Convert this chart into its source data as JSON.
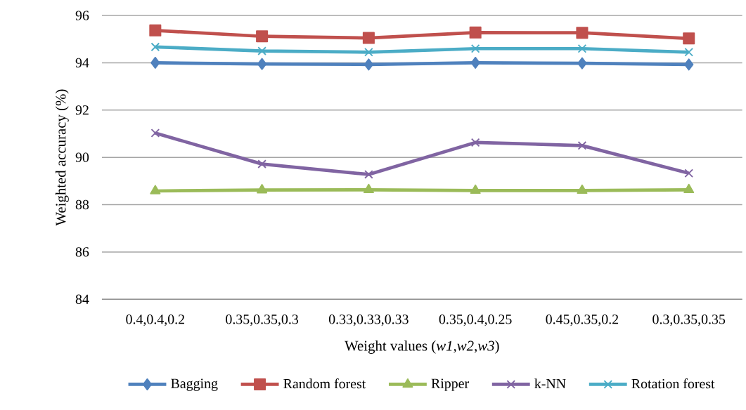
{
  "chart_data": {
    "type": "line",
    "ylabel": "Weighted accuracy (%)",
    "xlabel": "Weight values (*w1*,*w2*,*w3*)",
    "categories": [
      "0.4,0.4,0.2",
      "0.35,0.35,0.3",
      "0.33,0.33,0.33",
      "0.35,0.4,0.25",
      "0.45,0.35,0.2",
      "0.3,0.35,0.35"
    ],
    "series": [
      {
        "name": "Bagging",
        "color": "#4f81bd",
        "marker": "diamond",
        "values": [
          94.0,
          93.95,
          93.93,
          94.0,
          93.98,
          93.93
        ]
      },
      {
        "name": "Random forest",
        "color": "#c0504d",
        "marker": "square",
        "values": [
          95.37,
          95.12,
          95.05,
          95.28,
          95.27,
          95.03
        ]
      },
      {
        "name": "Ripper",
        "color": "#9bbb59",
        "marker": "triangle",
        "values": [
          88.58,
          88.62,
          88.63,
          88.6,
          88.6,
          88.63
        ]
      },
      {
        "name": "k-NN",
        "color": "#8064a2",
        "marker": "cross",
        "values": [
          91.03,
          89.72,
          89.28,
          90.63,
          90.5,
          89.33
        ]
      },
      {
        "name": "Rotation  forest",
        "color": "#4bacc6",
        "marker": "cross",
        "values": [
          94.67,
          94.5,
          94.45,
          94.6,
          94.6,
          94.45
        ]
      }
    ],
    "ylim": [
      84,
      96
    ],
    "yticks": [
      84,
      86,
      88,
      90,
      92,
      94,
      96
    ],
    "grid": "y",
    "legend": "bottom",
    "line_style": "solid"
  }
}
